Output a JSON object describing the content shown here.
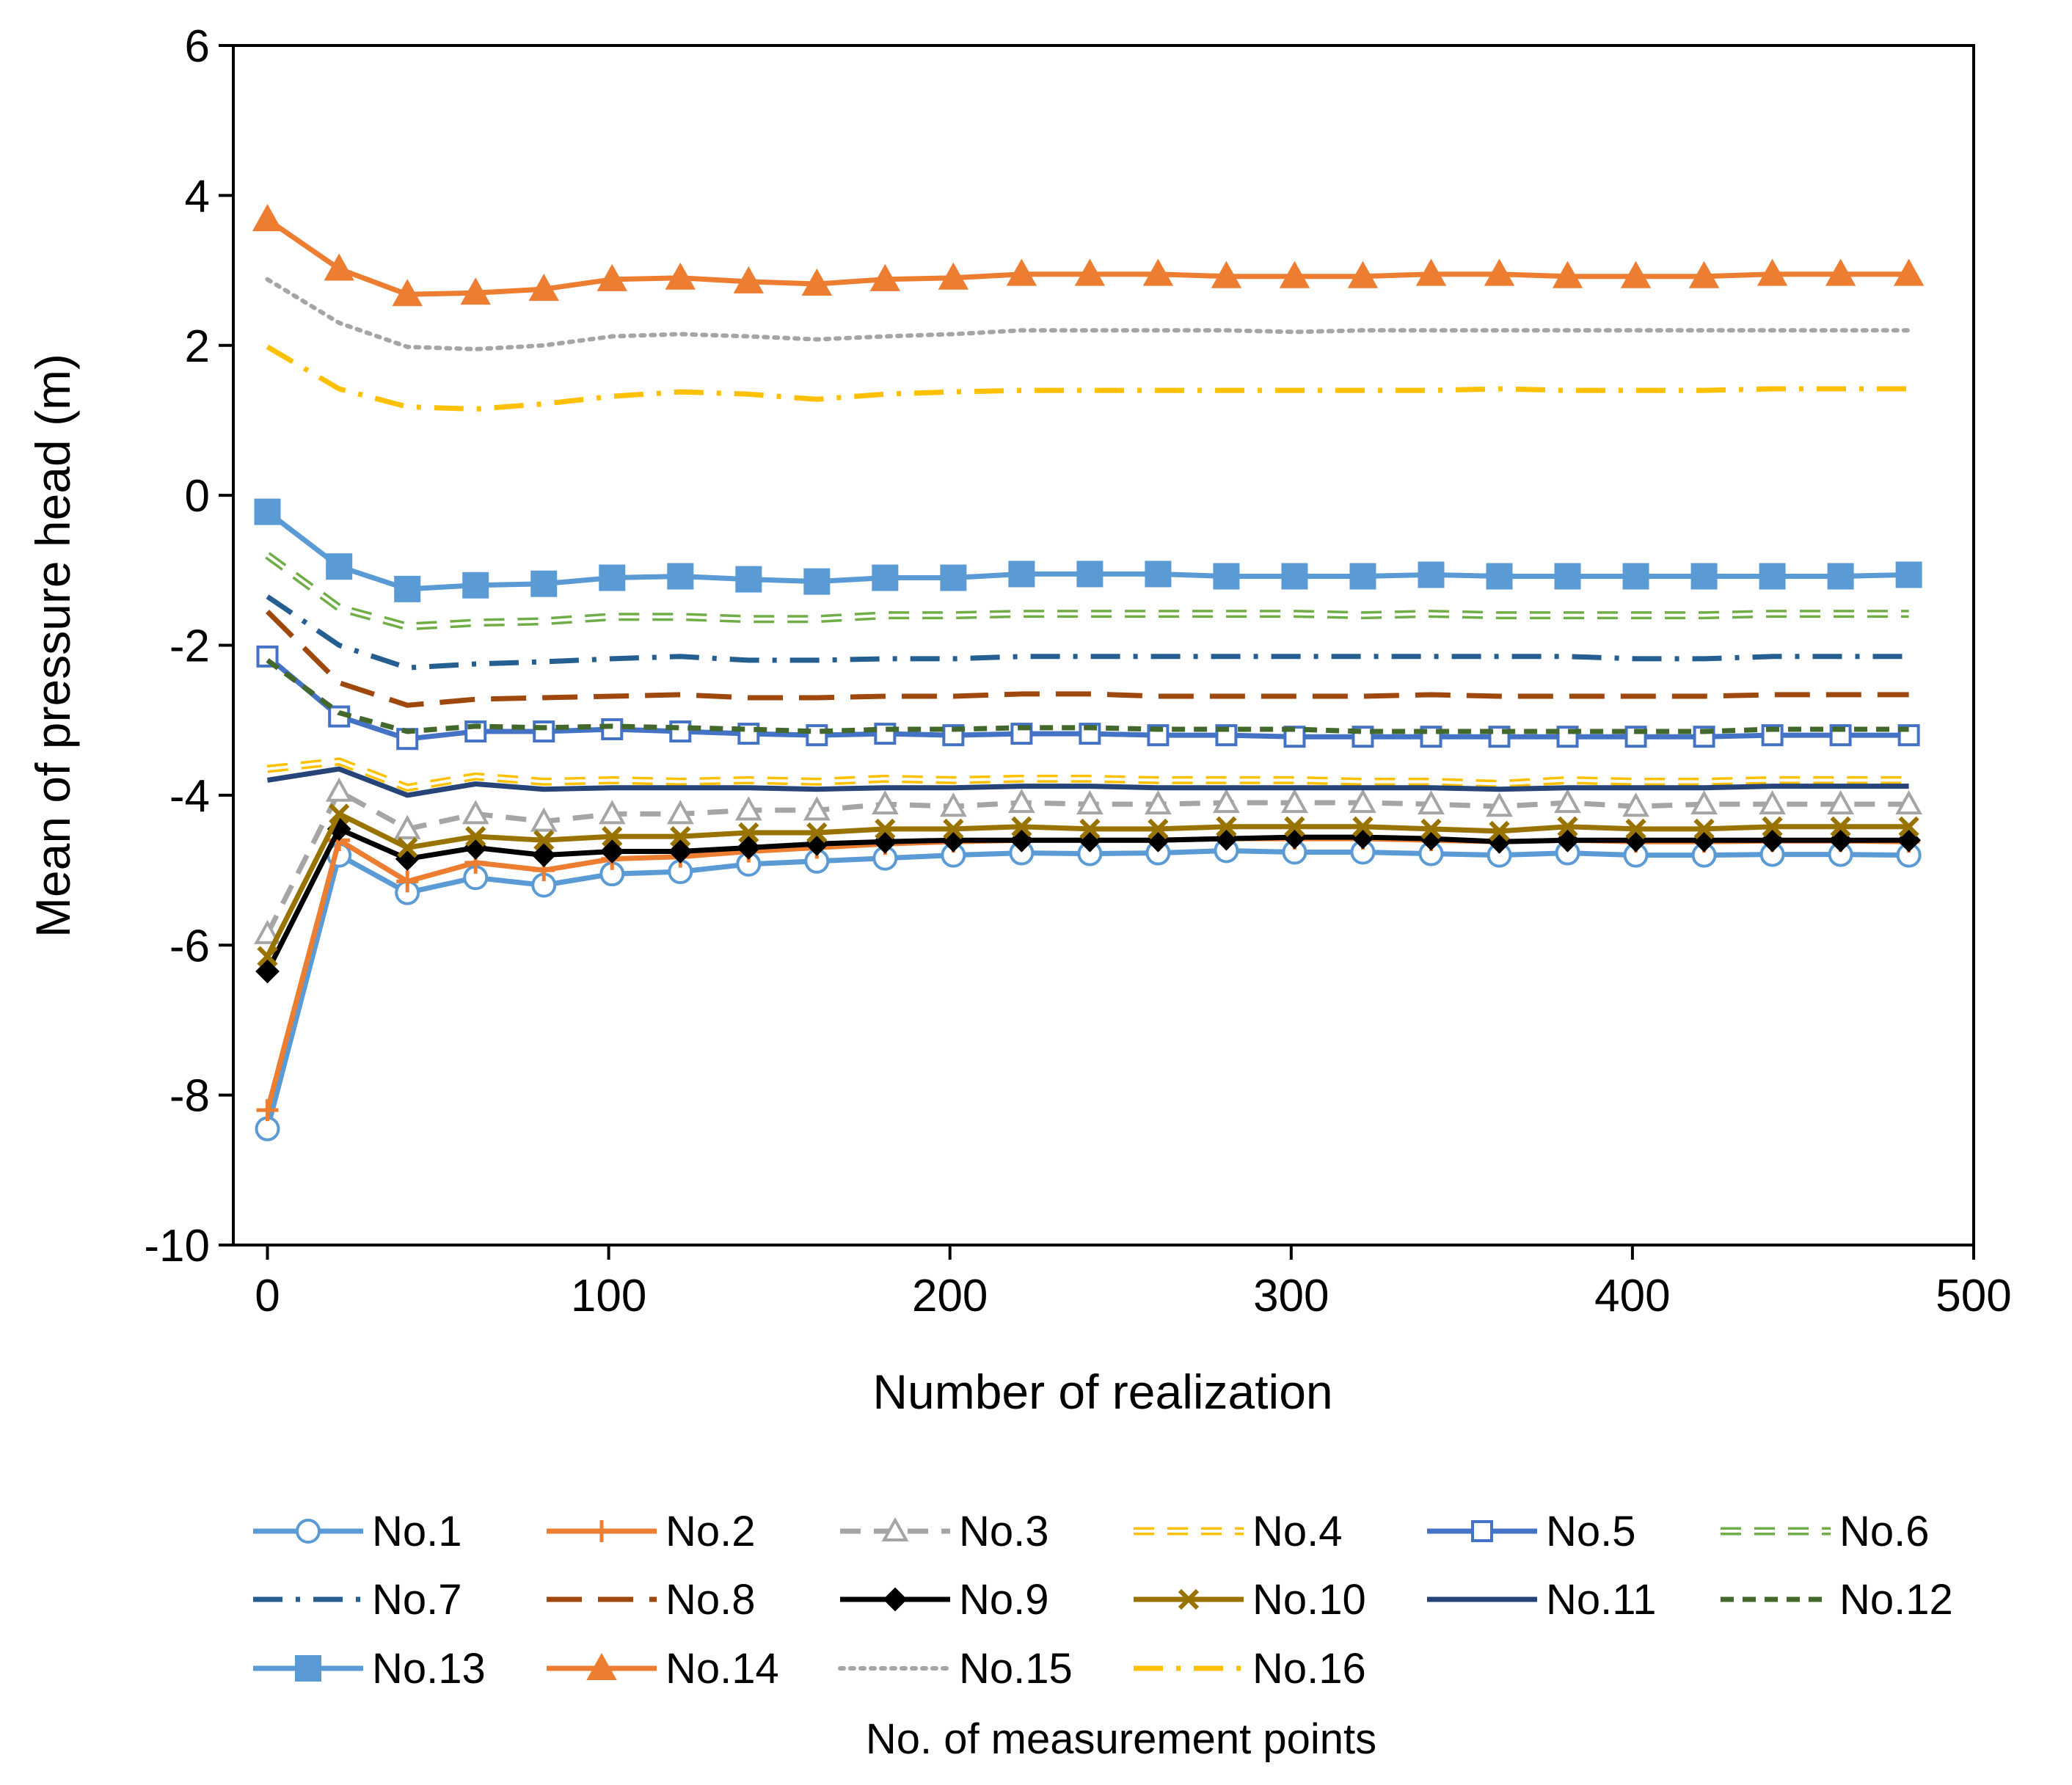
{
  "chart_data": {
    "type": "line",
    "xlabel": "Number of realization",
    "ylabel": "Mean of pressure head (m)",
    "xlim": [
      -10,
      500
    ],
    "ylim": [
      -10,
      6
    ],
    "xticks": [
      0,
      100,
      200,
      300,
      400,
      500
    ],
    "yticks": [
      -10,
      -8,
      -6,
      -4,
      -2,
      0,
      2,
      4,
      6
    ],
    "grid": false,
    "legend_position": "bottom",
    "legend_title": "No. of measurement points",
    "x": [
      0,
      21,
      41,
      61,
      81,
      101,
      121,
      141,
      161,
      181,
      201,
      221,
      241,
      261,
      281,
      301,
      321,
      341,
      361,
      381,
      401,
      421,
      441,
      461,
      481
    ],
    "series": [
      {
        "name": "No.1",
        "color": "#5B9BD5",
        "dash": "solid",
        "marker": "circle-open",
        "values": [
          -8.45,
          -4.8,
          -5.3,
          -5.1,
          -5.2,
          -5.05,
          -5.02,
          -4.92,
          -4.88,
          -4.84,
          -4.8,
          -4.77,
          -4.78,
          -4.77,
          -4.74,
          -4.76,
          -4.76,
          -4.78,
          -4.8,
          -4.77,
          -4.8,
          -4.8,
          -4.79,
          -4.79,
          -4.8
        ]
      },
      {
        "name": "No.2",
        "color": "#ED7D31",
        "dash": "solid",
        "marker": "plus",
        "values": [
          -8.2,
          -4.6,
          -5.15,
          -4.9,
          -5.0,
          -4.85,
          -4.82,
          -4.75,
          -4.7,
          -4.65,
          -4.62,
          -4.6,
          -4.6,
          -4.6,
          -4.58,
          -4.58,
          -4.58,
          -4.6,
          -4.62,
          -4.6,
          -4.62,
          -4.62,
          -4.61,
          -4.61,
          -4.62
        ]
      },
      {
        "name": "No.3",
        "color": "#A5A5A5",
        "dash": "dash",
        "marker": "triangle-open",
        "values": [
          -5.85,
          -3.95,
          -4.45,
          -4.25,
          -4.35,
          -4.25,
          -4.25,
          -4.2,
          -4.2,
          -4.12,
          -4.15,
          -4.1,
          -4.12,
          -4.12,
          -4.1,
          -4.1,
          -4.1,
          -4.12,
          -4.15,
          -4.1,
          -4.15,
          -4.12,
          -4.12,
          -4.12,
          -4.12
        ]
      },
      {
        "name": "No.4",
        "color": "#FFC000",
        "dash": "dash",
        "marker": "double-line",
        "values": [
          -3.65,
          -3.55,
          -3.9,
          -3.75,
          -3.82,
          -3.8,
          -3.82,
          -3.8,
          -3.82,
          -3.78,
          -3.8,
          -3.78,
          -3.78,
          -3.8,
          -3.8,
          -3.8,
          -3.82,
          -3.82,
          -3.85,
          -3.8,
          -3.82,
          -3.82,
          -3.8,
          -3.8,
          -3.8
        ]
      },
      {
        "name": "No.5",
        "color": "#4472C4",
        "dash": "solid",
        "marker": "square-open",
        "values": [
          -2.15,
          -2.95,
          -3.25,
          -3.15,
          -3.15,
          -3.12,
          -3.15,
          -3.18,
          -3.2,
          -3.18,
          -3.2,
          -3.18,
          -3.18,
          -3.2,
          -3.2,
          -3.22,
          -3.22,
          -3.22,
          -3.22,
          -3.22,
          -3.22,
          -3.22,
          -3.2,
          -3.2,
          -3.2
        ]
      },
      {
        "name": "No.6",
        "color": "#70AD47",
        "dash": "dash",
        "marker": "double-line",
        "values": [
          -0.8,
          -1.5,
          -1.75,
          -1.7,
          -1.68,
          -1.62,
          -1.62,
          -1.65,
          -1.65,
          -1.6,
          -1.6,
          -1.58,
          -1.58,
          -1.58,
          -1.58,
          -1.58,
          -1.6,
          -1.58,
          -1.6,
          -1.6,
          -1.6,
          -1.6,
          -1.58,
          -1.58,
          -1.58
        ]
      },
      {
        "name": "No.7",
        "color": "#255E91",
        "dash": "dashdot",
        "marker": "none",
        "values": [
          -1.35,
          -2.0,
          -2.3,
          -2.25,
          -2.22,
          -2.18,
          -2.15,
          -2.2,
          -2.2,
          -2.18,
          -2.18,
          -2.15,
          -2.15,
          -2.15,
          -2.15,
          -2.15,
          -2.15,
          -2.15,
          -2.15,
          -2.15,
          -2.18,
          -2.18,
          -2.15,
          -2.15,
          -2.15
        ]
      },
      {
        "name": "No.8",
        "color": "#9E480E",
        "dash": "longdash",
        "marker": "none",
        "values": [
          -1.55,
          -2.5,
          -2.8,
          -2.72,
          -2.7,
          -2.68,
          -2.66,
          -2.7,
          -2.7,
          -2.68,
          -2.68,
          -2.65,
          -2.65,
          -2.68,
          -2.68,
          -2.68,
          -2.68,
          -2.66,
          -2.68,
          -2.68,
          -2.68,
          -2.68,
          -2.66,
          -2.66,
          -2.66
        ]
      },
      {
        "name": "No.9",
        "color": "#000000",
        "dash": "solid",
        "marker": "diamond",
        "values": [
          -6.35,
          -4.45,
          -4.85,
          -4.7,
          -4.8,
          -4.75,
          -4.75,
          -4.7,
          -4.65,
          -4.62,
          -4.6,
          -4.6,
          -4.6,
          -4.6,
          -4.58,
          -4.56,
          -4.56,
          -4.58,
          -4.62,
          -4.6,
          -4.6,
          -4.6,
          -4.6,
          -4.6,
          -4.6
        ]
      },
      {
        "name": "No.10",
        "color": "#997300",
        "dash": "solid",
        "marker": "x",
        "values": [
          -6.15,
          -4.25,
          -4.7,
          -4.55,
          -4.6,
          -4.55,
          -4.55,
          -4.5,
          -4.5,
          -4.45,
          -4.45,
          -4.42,
          -4.45,
          -4.45,
          -4.42,
          -4.42,
          -4.42,
          -4.45,
          -4.48,
          -4.42,
          -4.45,
          -4.45,
          -4.42,
          -4.42,
          -4.42
        ]
      },
      {
        "name": "No.11",
        "color": "#264478",
        "dash": "solid",
        "marker": "none",
        "values": [
          -3.8,
          -3.65,
          -4.0,
          -3.85,
          -3.92,
          -3.9,
          -3.9,
          -3.9,
          -3.92,
          -3.9,
          -3.9,
          -3.88,
          -3.88,
          -3.9,
          -3.9,
          -3.9,
          -3.9,
          -3.9,
          -3.92,
          -3.9,
          -3.9,
          -3.9,
          -3.88,
          -3.88,
          -3.88
        ]
      },
      {
        "name": "No.12",
        "color": "#43682B",
        "dash": "shortdash",
        "marker": "none",
        "values": [
          -2.2,
          -2.9,
          -3.15,
          -3.08,
          -3.1,
          -3.08,
          -3.1,
          -3.12,
          -3.15,
          -3.12,
          -3.12,
          -3.1,
          -3.1,
          -3.12,
          -3.12,
          -3.12,
          -3.15,
          -3.15,
          -3.15,
          -3.15,
          -3.15,
          -3.15,
          -3.12,
          -3.12,
          -3.12
        ]
      },
      {
        "name": "No.13",
        "color": "#5B9BD5",
        "dash": "solid",
        "marker": "square",
        "values": [
          -0.22,
          -0.95,
          -1.25,
          -1.2,
          -1.18,
          -1.1,
          -1.08,
          -1.12,
          -1.15,
          -1.1,
          -1.1,
          -1.05,
          -1.05,
          -1.05,
          -1.08,
          -1.08,
          -1.08,
          -1.06,
          -1.08,
          -1.08,
          -1.08,
          -1.08,
          -1.08,
          -1.08,
          -1.06
        ]
      },
      {
        "name": "No.14",
        "color": "#ED7D31",
        "dash": "solid",
        "marker": "triangle",
        "values": [
          3.68,
          3.02,
          2.68,
          2.7,
          2.75,
          2.88,
          2.9,
          2.85,
          2.82,
          2.88,
          2.9,
          2.95,
          2.95,
          2.95,
          2.92,
          2.92,
          2.92,
          2.95,
          2.95,
          2.92,
          2.92,
          2.92,
          2.95,
          2.95,
          2.95
        ]
      },
      {
        "name": "No.15",
        "color": "#A5A5A5",
        "dash": "dotted",
        "marker": "none",
        "values": [
          2.88,
          2.3,
          1.98,
          1.95,
          2.0,
          2.12,
          2.15,
          2.12,
          2.08,
          2.12,
          2.15,
          2.2,
          2.2,
          2.2,
          2.2,
          2.18,
          2.2,
          2.2,
          2.2,
          2.2,
          2.2,
          2.2,
          2.2,
          2.2,
          2.2
        ]
      },
      {
        "name": "No.16",
        "color": "#FFC000",
        "dash": "dashdot",
        "marker": "none",
        "values": [
          1.98,
          1.42,
          1.18,
          1.15,
          1.22,
          1.32,
          1.38,
          1.35,
          1.28,
          1.35,
          1.38,
          1.4,
          1.4,
          1.4,
          1.4,
          1.4,
          1.4,
          1.4,
          1.42,
          1.4,
          1.4,
          1.4,
          1.42,
          1.42,
          1.42
        ]
      }
    ]
  }
}
